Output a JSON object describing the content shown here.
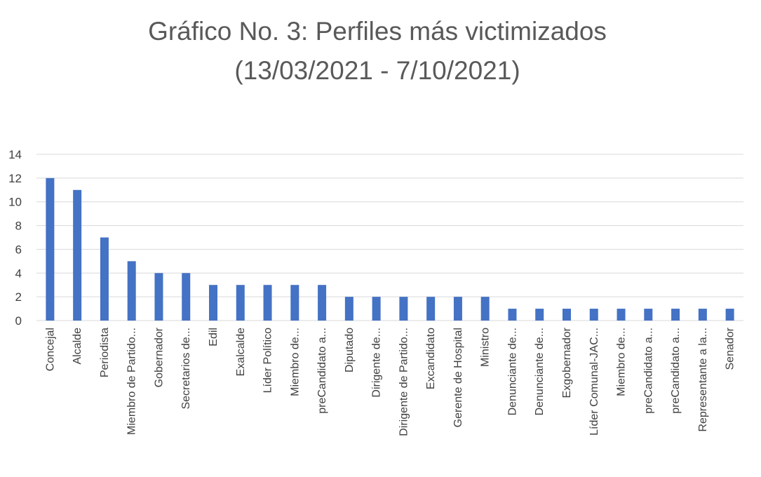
{
  "chart_data": {
    "type": "bar",
    "title_lines": [
      "Gráfico No. 3: Perfiles más victimizados",
      "(13/03/2021 - 7/10/2021)"
    ],
    "xlabel": "",
    "ylabel": "",
    "ylim": [
      0,
      14
    ],
    "yticks": [
      0,
      2,
      4,
      6,
      8,
      10,
      12,
      14
    ],
    "grid": true,
    "legend": "none",
    "bar_color": "#4472c4",
    "categories": [
      "Concejal",
      "Alcalde",
      "Periodista",
      "Miembro de Partido...",
      "Gobernador",
      "Secretarios de...",
      "Edil",
      "Exalcalde",
      "Líder Político",
      "Miembro de...",
      "preCandidato a...",
      "Diputado",
      "Dirigente de...",
      "Dirigente de Partido...",
      "Excandidato",
      "Gerente de Hospital",
      "Ministro",
      "Denunciante de...",
      "Denunciante de...",
      "Exgobernador",
      "Líder Comunal-JAC...",
      "Miembro de...",
      "preCandidato a...",
      "preCandidato a...",
      "Representante a la...",
      "Senador"
    ],
    "values": [
      12,
      11,
      7,
      5,
      4,
      4,
      3,
      3,
      3,
      3,
      3,
      2,
      2,
      2,
      2,
      2,
      2,
      1,
      1,
      1,
      1,
      1,
      1,
      1,
      1,
      1
    ]
  }
}
